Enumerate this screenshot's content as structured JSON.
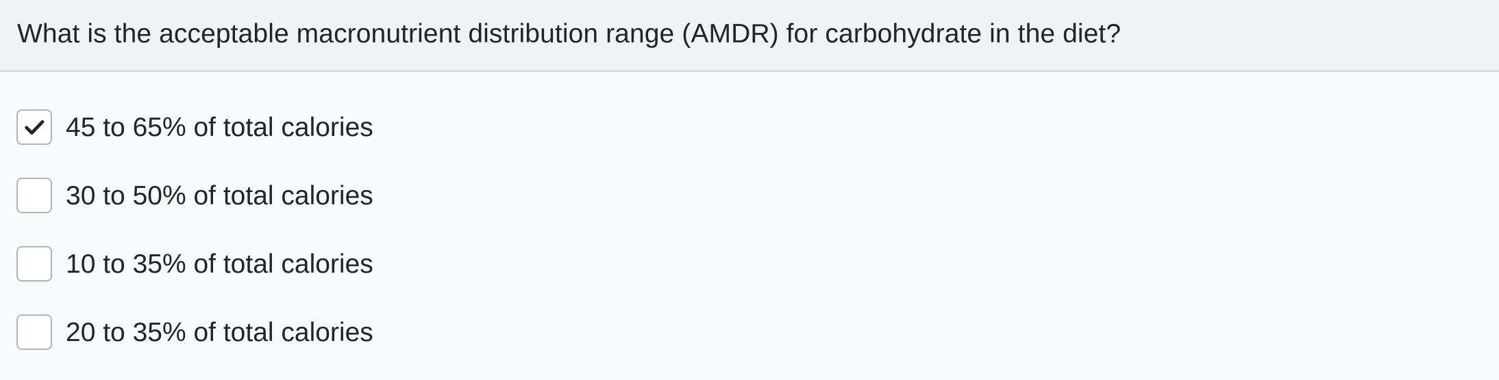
{
  "question": {
    "text": "What is the acceptable macronutrient distribution range (AMDR) for carbohydrate in the diet?"
  },
  "options": [
    {
      "label": "45 to 65% of total calories",
      "checked": true
    },
    {
      "label": "30 to 50% of total calories",
      "checked": false
    },
    {
      "label": "10 to 35% of total calories",
      "checked": false
    },
    {
      "label": "20 to 35% of total calories",
      "checked": false
    }
  ],
  "icons": {
    "checked": "checkmark-icon"
  },
  "colors": {
    "header_background": "#f1f2f3",
    "page_background": "#f8f9fa",
    "text": "#212529",
    "checkbox_border": "#b0b5ba",
    "checkmark": "#212529"
  }
}
